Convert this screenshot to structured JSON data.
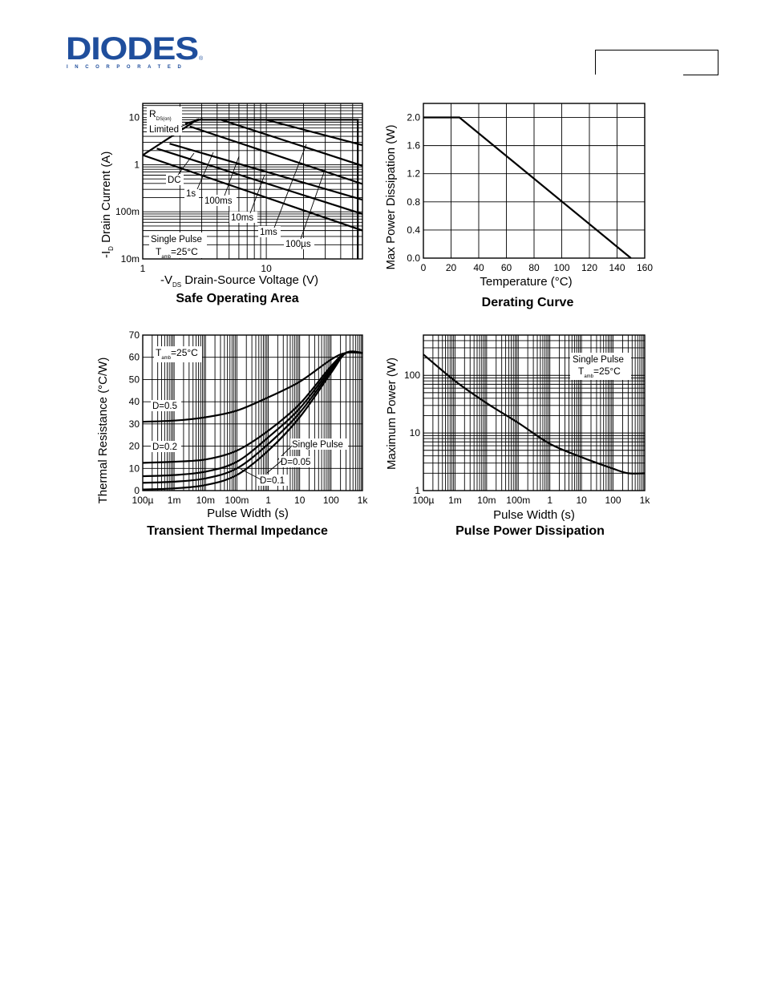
{
  "header": {
    "logo_word": "DIODES",
    "logo_sub": "INCORPORATED",
    "logo_reg": "®"
  },
  "chart_data": [
    {
      "type": "line",
      "title": "Safe Operating Area",
      "xlabel": "-V_DS Drain-Source Voltage (V)",
      "xlabel_parts": {
        "prefix": "-V",
        "sub": "DS",
        "rest": "Drain-Source Voltage (V)"
      },
      "ylabel": "-I_D Drain Current (A)",
      "ylabel_parts": {
        "prefix": "-I",
        "sub": "D",
        "rest": "Drain Current (A)"
      },
      "x_scale": "log",
      "y_scale": "log",
      "xlim": [
        1,
        60
      ],
      "ylim": [
        0.01,
        20
      ],
      "x_ticks": [
        {
          "v": 1,
          "label": "1"
        },
        {
          "v": 10,
          "label": "10"
        }
      ],
      "y_ticks": [
        {
          "v": 10,
          "label": "10"
        },
        {
          "v": 1,
          "label": "1"
        },
        {
          "v": 0.1,
          "label": "100m"
        },
        {
          "v": 0.01,
          "label": "10m"
        }
      ],
      "grid": true,
      "series": [
        {
          "name": "DC",
          "x": [
            1,
            60
          ],
          "y": [
            1.6,
            0.04
          ]
        },
        {
          "name": "1s",
          "x": [
            1.3,
            60
          ],
          "y": [
            2.2,
            0.09
          ]
        },
        {
          "name": "100ms",
          "x": [
            1.65,
            60
          ],
          "y": [
            2.8,
            0.18
          ]
        },
        {
          "name": "10ms",
          "x": [
            2.4,
            60
          ],
          "y": [
            6.5,
            0.39
          ]
        },
        {
          "name": "1ms",
          "x": [
            4.3,
            60
          ],
          "y": [
            9,
            0.95
          ]
        },
        {
          "name": "100µs",
          "x": [
            10,
            60
          ],
          "y": [
            9,
            2.6
          ]
        }
      ],
      "envelope": {
        "x": [
          1,
          2.75,
          55,
          55
        ],
        "y": [
          1.6,
          9,
          9,
          0.01
        ]
      },
      "rds_line": {
        "x": [
          2.2,
          3.05
        ],
        "y": [
          7.4,
          9.4
        ]
      },
      "annotations": {
        "rds_main": "R",
        "rds_sub": "DS(on)",
        "limited": "Limited",
        "dc": "DC",
        "s1": "1s",
        "ms100": "100ms",
        "ms10": "10ms",
        "ms1": "1ms",
        "us100": "100µs",
        "single_pulse": "Single Pulse",
        "tamb_main": "T",
        "tamb_sub": "amb",
        "tamb_val": "=25°C"
      }
    },
    {
      "type": "line",
      "title": "Derating Curve",
      "xlabel": "Temperature (°C)",
      "ylabel": "Max Power Dissipation (W)",
      "xlim": [
        0,
        160
      ],
      "ylim": [
        0,
        2.2
      ],
      "x_ticks": [
        0,
        20,
        40,
        60,
        80,
        100,
        120,
        140,
        160
      ],
      "y_ticks": [
        {
          "v": 0,
          "label": "0.0"
        },
        {
          "v": 0.4,
          "label": "0.4"
        },
        {
          "v": 0.8,
          "label": "0.8"
        },
        {
          "v": 1.2,
          "label": "1.2"
        },
        {
          "v": 1.6,
          "label": "1.6"
        },
        {
          "v": 2.0,
          "label": "2.0"
        }
      ],
      "grid": true,
      "series": [
        {
          "x": [
            0,
            26,
            150
          ],
          "y": [
            2.0,
            2.0,
            0
          ]
        }
      ]
    },
    {
      "type": "line",
      "title": "Transient Thermal Impedance",
      "xlabel": "Pulse Width (s)",
      "ylabel": "Thermal Resistance (°C/W)",
      "x_scale": "log",
      "xlim": [
        0.0001,
        1000
      ],
      "ylim": [
        0,
        70
      ],
      "x_ticks": [
        {
          "v": 0.0001,
          "label": "100µ"
        },
        {
          "v": 0.001,
          "label": "1m"
        },
        {
          "v": 0.01,
          "label": "10m"
        },
        {
          "v": 0.1,
          "label": "100m"
        },
        {
          "v": 1,
          "label": "1"
        },
        {
          "v": 10,
          "label": "10"
        },
        {
          "v": 100,
          "label": "100"
        },
        {
          "v": 1000,
          "label": "1k"
        }
      ],
      "y_ticks": [
        0,
        10,
        20,
        30,
        40,
        50,
        60,
        70
      ],
      "grid": true,
      "series": [
        {
          "name": "D=0.5",
          "x": [
            0.0001,
            0.001,
            0.01,
            0.1,
            1,
            10,
            100,
            300,
            1000
          ],
          "y": [
            31,
            31.5,
            33,
            36,
            42,
            49,
            59,
            62,
            62
          ]
        },
        {
          "name": "D=0.2",
          "x": [
            0.0001,
            0.001,
            0.01,
            0.1,
            1,
            10,
            100,
            300,
            1000
          ],
          "y": [
            12.5,
            13,
            14,
            18,
            27,
            39,
            56,
            62,
            62
          ]
        },
        {
          "name": "D=0.1",
          "x": [
            0.0001,
            0.001,
            0.01,
            0.1,
            1,
            10,
            100,
            300,
            1000
          ],
          "y": [
            6.5,
            7,
            8.5,
            13,
            24,
            37,
            55,
            62,
            62
          ]
        },
        {
          "name": "D=0.05",
          "x": [
            0.0001,
            0.001,
            0.01,
            0.1,
            1,
            10,
            100,
            300,
            1000
          ],
          "y": [
            3.5,
            4,
            5.5,
            10,
            21,
            35,
            54,
            62,
            62
          ]
        },
        {
          "name": "Single Pulse",
          "x": [
            0.0001,
            0.001,
            0.01,
            0.1,
            1,
            10,
            100,
            300,
            1000
          ],
          "y": [
            0.5,
            1,
            2.5,
            7,
            18,
            33,
            53,
            62,
            62
          ]
        }
      ],
      "annotations": {
        "tamb_main": "T",
        "tamb_sub": "amb",
        "tamb_val": "=25°C",
        "d05": "D=0.5",
        "d02": "D=0.2",
        "single_pulse": "Single Pulse",
        "d005": "D=0.05",
        "d01": "D=0.1"
      }
    },
    {
      "type": "line",
      "title": "Pulse Power Dissipation",
      "xlabel": "Pulse Width (s)",
      "ylabel": "Maximum Power (W)",
      "x_scale": "log",
      "y_scale": "log",
      "xlim": [
        0.0001,
        1000
      ],
      "ylim": [
        1,
        500
      ],
      "x_ticks": [
        {
          "v": 0.0001,
          "label": "100µ"
        },
        {
          "v": 0.001,
          "label": "1m"
        },
        {
          "v": 0.01,
          "label": "10m"
        },
        {
          "v": 0.1,
          "label": "100m"
        },
        {
          "v": 1,
          "label": "1"
        },
        {
          "v": 10,
          "label": "10"
        },
        {
          "v": 100,
          "label": "100"
        },
        {
          "v": 1000,
          "label": "1k"
        }
      ],
      "y_ticks": [
        {
          "v": 1,
          "label": "1"
        },
        {
          "v": 10,
          "label": "10"
        },
        {
          "v": 100,
          "label": "100"
        }
      ],
      "grid": true,
      "series": [
        {
          "name": "Single Pulse",
          "x": [
            0.0001,
            0.001,
            0.01,
            0.1,
            1,
            10,
            100,
            300,
            1000
          ],
          "y": [
            230,
            80,
            33,
            15,
            6.5,
            3.8,
            2.4,
            2.0,
            2.0
          ]
        }
      ],
      "annotations": {
        "single_pulse": "Single Pulse",
        "tamb_main": "T",
        "tamb_sub": "amb",
        "tamb_val": "=25°C"
      }
    }
  ]
}
